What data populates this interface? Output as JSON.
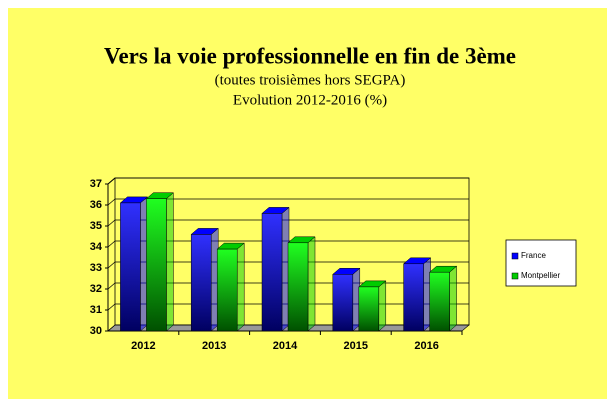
{
  "chart_data": {
    "type": "bar",
    "title": "Vers la voie professionnelle en fin de 3ème",
    "subtitle": [
      "(toutes troisièmes hors SEGPA)",
      "Evolution 2012-2016 (%)"
    ],
    "categories": [
      "2012",
      "2013",
      "2014",
      "2015",
      "2016"
    ],
    "series": [
      {
        "name": "France",
        "color": "#0000ff",
        "values": [
          36.1,
          34.6,
          35.6,
          32.7,
          33.2
        ]
      },
      {
        "name": "Montpellier",
        "color": "#00cc00",
        "values": [
          36.3,
          33.9,
          34.2,
          32.1,
          32.8
        ]
      }
    ],
    "ylim": [
      30,
      37
    ],
    "yticks": [
      30,
      31,
      32,
      33,
      34,
      35,
      36,
      37
    ],
    "grid": true,
    "legend": "right"
  }
}
